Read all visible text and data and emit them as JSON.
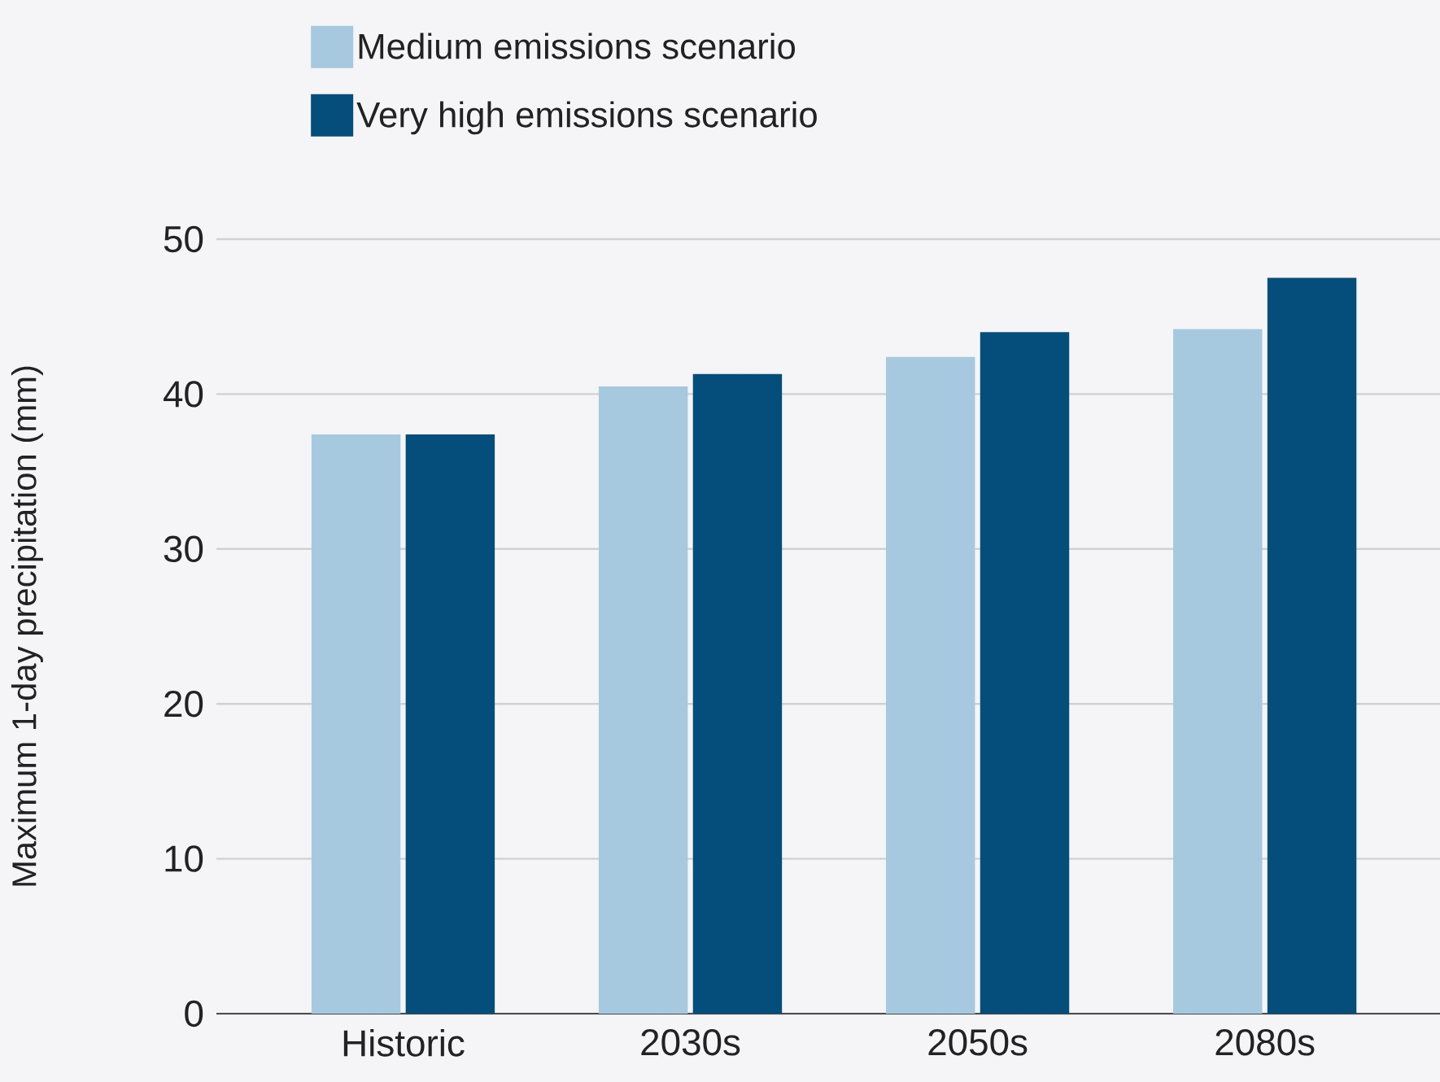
{
  "chart_data": {
    "type": "bar",
    "categories": [
      "Historic",
      "2030s",
      "2050s",
      "2080s"
    ],
    "series": [
      {
        "name": "Medium emissions scenario",
        "color": "#a6c9df",
        "values": [
          37.4,
          40.5,
          42.4,
          44.2
        ]
      },
      {
        "name": "Very high emissions scenario",
        "color": "#054d7b",
        "values": [
          37.4,
          41.3,
          44.0,
          47.5
        ]
      }
    ],
    "ylabel": "Maximum 1-day precipitation (mm)",
    "ylim": [
      0,
      50
    ],
    "yticks": [
      0,
      10,
      20,
      30,
      40,
      50
    ],
    "grid": "y",
    "legend": "top"
  }
}
